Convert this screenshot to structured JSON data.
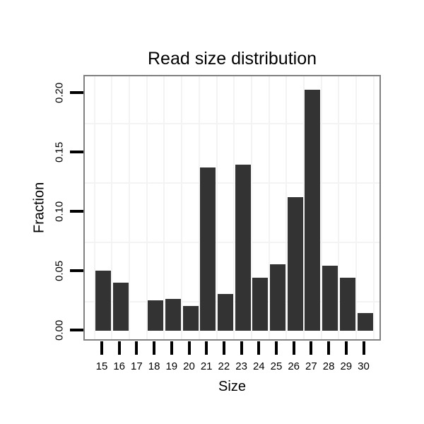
{
  "title": "Read size distribution",
  "chart_data": {
    "type": "bar",
    "title": "Read size distribution",
    "xlabel": "Size",
    "ylabel": "Fraction",
    "categories": [
      "15",
      "16",
      "17",
      "18",
      "19",
      "20",
      "21",
      "22",
      "23",
      "24",
      "25",
      "26",
      "27",
      "28",
      "29",
      "30"
    ],
    "values": [
      0.051,
      0.041,
      0.0,
      0.026,
      0.027,
      0.021,
      0.138,
      0.031,
      0.14,
      0.045,
      0.056,
      0.113,
      0.203,
      0.055,
      0.045,
      0.015
    ],
    "ylim": [
      0,
      0.2145
    ],
    "y_ticks": [
      0.0,
      0.05,
      0.1,
      0.15,
      0.2
    ],
    "y_tick_labels": [
      "0.00",
      "0.05",
      "0.10",
      "0.15",
      "0.20"
    ],
    "y_minor_gridlines": [
      0.025,
      0.075,
      0.125,
      0.175
    ],
    "grid": "minor-only",
    "legend": "none",
    "bar_color": "#333333",
    "panel_border_color": "#808080",
    "grid_color": "#f3f3f3",
    "tick_color": "#000000",
    "text_color": "#000000"
  }
}
